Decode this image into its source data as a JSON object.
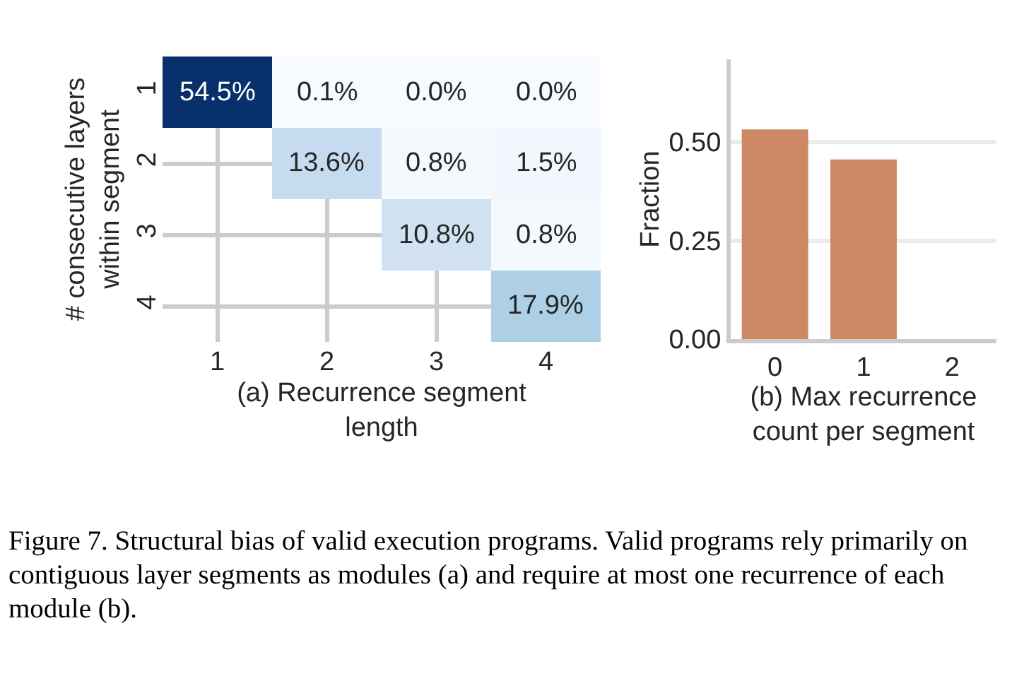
{
  "chart_data": [
    {
      "type": "heatmap",
      "xlabel": "(a) Recurrence segment\nlength",
      "ylabel": "# consecutive layers\nwithin segment",
      "categories": [
        "1",
        "2",
        "3",
        "4"
      ],
      "y_categories": [
        "1",
        "2",
        "3",
        "4"
      ],
      "cells": [
        [
          54.5,
          0.1,
          0.0,
          0.0
        ],
        [
          null,
          13.6,
          0.8,
          1.5
        ],
        [
          null,
          null,
          10.8,
          0.8
        ],
        [
          null,
          null,
          null,
          17.9
        ]
      ],
      "cell_labels": [
        [
          "54.5%",
          "0.1%",
          "0.0%",
          "0.0%"
        ],
        [
          null,
          "13.6%",
          "0.8%",
          "1.5%"
        ],
        [
          null,
          null,
          "10.8%",
          "0.8%"
        ],
        [
          null,
          null,
          null,
          "17.9%"
        ]
      ],
      "grid": true,
      "annotations": [
        "Figure 7. Structural bias of valid execution programs. Valid programs rely primarily on contiguous layer segments as modules (a) and require at most one recurrence of each module (b)."
      ]
    },
    {
      "type": "bar",
      "xlabel": "(b) Max recurrence\ncount per segment",
      "ylabel": "Fraction",
      "categories": [
        "0",
        "1",
        "2"
      ],
      "values": [
        0.532,
        0.456,
        0
      ],
      "color": "#cc8963",
      "ylim": [
        0,
        0.71
      ],
      "yticks": [
        {
          "value": 0,
          "label": "0.00"
        },
        {
          "value": 0.25,
          "label": "0.25"
        },
        {
          "value": 0.5,
          "label": "0.50"
        }
      ],
      "grid": "y"
    }
  ]
}
